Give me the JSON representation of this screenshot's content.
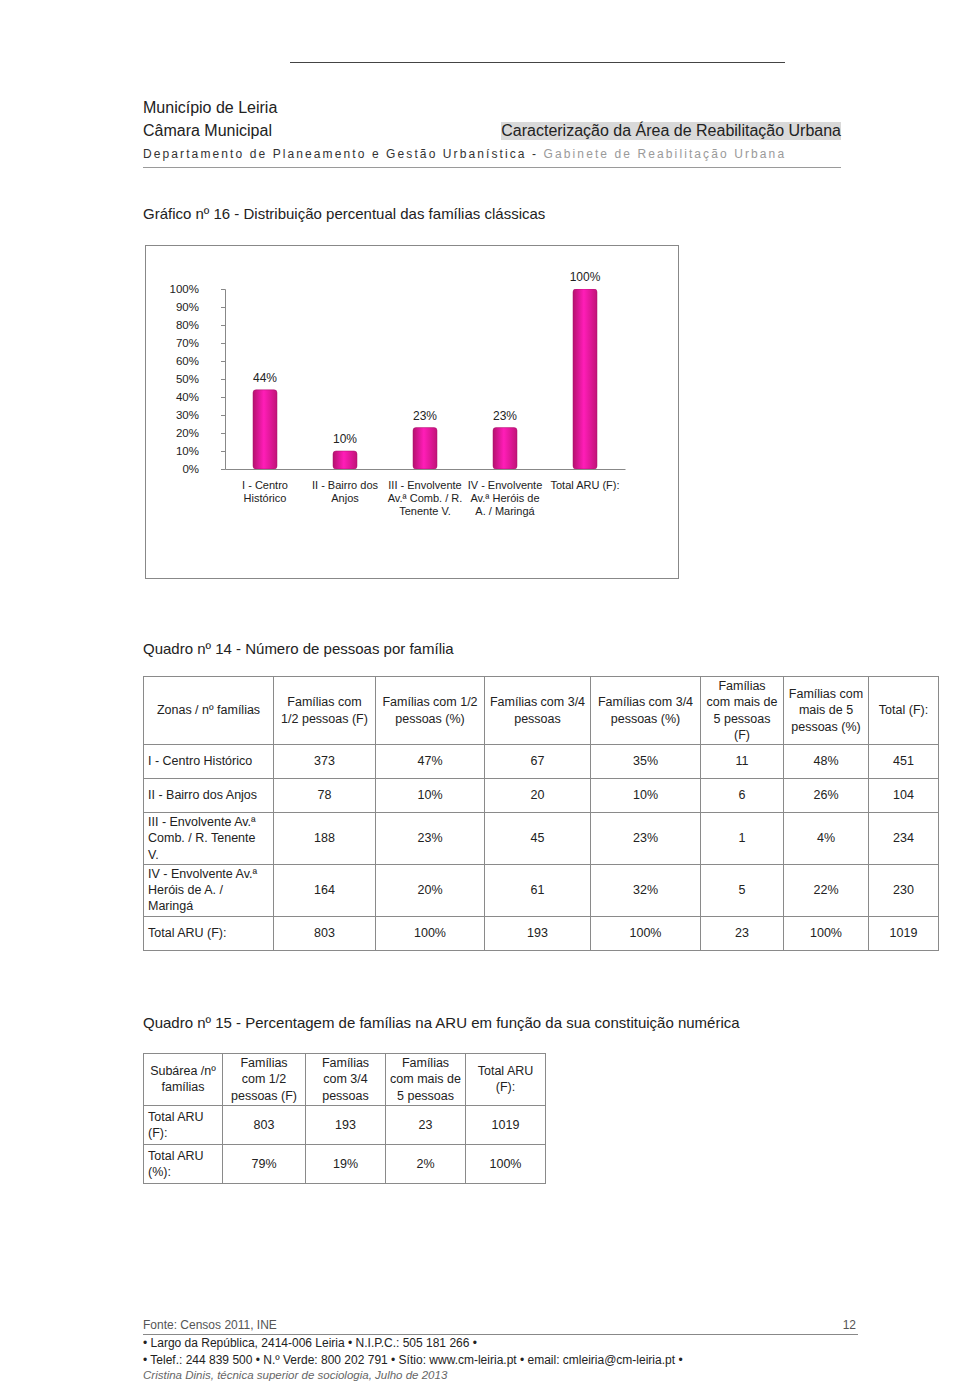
{
  "header": {
    "org": "Município de Leiria",
    "unit": "Câmara Municipal",
    "doc_title": "Caracterização da Área de Reabilitação Urbana",
    "department": "Departamento de Planeamento e Gestão Urbanística - ",
    "office": "Gabinete de Reabilitação Urbana"
  },
  "chart_data": {
    "type": "bar",
    "title": "Gráfico nº 16 - Distribuição percentual das famílias clássicas",
    "categories": [
      "I - Centro Histórico",
      "II - Bairro dos Anjos",
      "III - Envolvente Av.ª Comb. / R. Tenente V.",
      "IV - Envolvente Av.ª Heróis de A. / Maringá",
      "Total ARU (F):"
    ],
    "values": [
      44,
      10,
      23,
      23,
      100
    ],
    "value_labels": [
      "44%",
      "10%",
      "23%",
      "23%",
      "100%"
    ],
    "data_labels": true,
    "color": "#e0168a",
    "ylim": [
      0,
      100
    ],
    "yticks": [
      {
        "value": 0,
        "label": "0%"
      },
      {
        "value": 10,
        "label": "10%"
      },
      {
        "value": 20,
        "label": "20%"
      },
      {
        "value": 30,
        "label": "30%"
      },
      {
        "value": 40,
        "label": "40%"
      },
      {
        "value": 50,
        "label": "50%"
      },
      {
        "value": 60,
        "label": "60%"
      },
      {
        "value": 70,
        "label": "70%"
      },
      {
        "value": 80,
        "label": "80%"
      },
      {
        "value": 90,
        "label": "90%"
      },
      {
        "value": 100,
        "label": "100%"
      }
    ],
    "grid": false
  },
  "table14": {
    "title": "Quadro nº 14 - Número de pessoas por família",
    "columns": [
      "Zonas / nº famílias",
      "Famílias com 1/2 pessoas (F)",
      "Famílias com 1/2 pessoas (%)",
      "Famílias com 3/4 pessoas",
      "Famílias com 3/4 pessoas (%)",
      "Famílias com mais de 5 pessoas (F)",
      "Famílias com mais de 5 pessoas (%)",
      "Total (F):"
    ],
    "rows": [
      [
        "I - Centro Histórico",
        "373",
        "47%",
        "67",
        "35%",
        "11",
        "48%",
        "451"
      ],
      [
        "II - Bairro dos Anjos",
        "78",
        "10%",
        "20",
        "10%",
        "6",
        "26%",
        "104"
      ],
      [
        "III - Envolvente Av.ª Comb. / R. Tenente V.",
        "188",
        "23%",
        "45",
        "23%",
        "1",
        "4%",
        "234"
      ],
      [
        "IV - Envolvente Av.ª Heróis de A. / Maringá",
        "164",
        "20%",
        "61",
        "32%",
        "5",
        "22%",
        "230"
      ],
      [
        "Total ARU (F):",
        "803",
        "100%",
        "193",
        "100%",
        "23",
        "100%",
        "1019"
      ]
    ]
  },
  "table15": {
    "title": "Quadro nº 15 - Percentagem de famílias na ARU em função da sua constituição numérica",
    "columns": [
      "Subárea /nº famílias",
      "Famílias com 1/2 pessoas (F)",
      "Famílias com 3/4 pessoas",
      "Famílias com mais de 5 pessoas",
      "Total ARU (F):"
    ],
    "rows": [
      [
        "Total ARU (F):",
        "803",
        "193",
        "23",
        "1019"
      ],
      [
        "Total ARU (%):",
        "79%",
        "19%",
        "2%",
        "100%"
      ]
    ]
  },
  "footer": {
    "source": "Fonte: Censos 2011, INE",
    "page": "12",
    "address": "• Largo da República, 2414-006 Leiria • N.I.P.C.: 505 181 266 •",
    "contacts": "• Telef.: 244 839 500 • N.º Verde: 800 202 791 • Sítio: www.cm-leiria.pt • email: cmleiria@cm-leiria.pt •",
    "author": "Cristina Dinis, técnica superior de sociologia, Julho de 2013"
  }
}
